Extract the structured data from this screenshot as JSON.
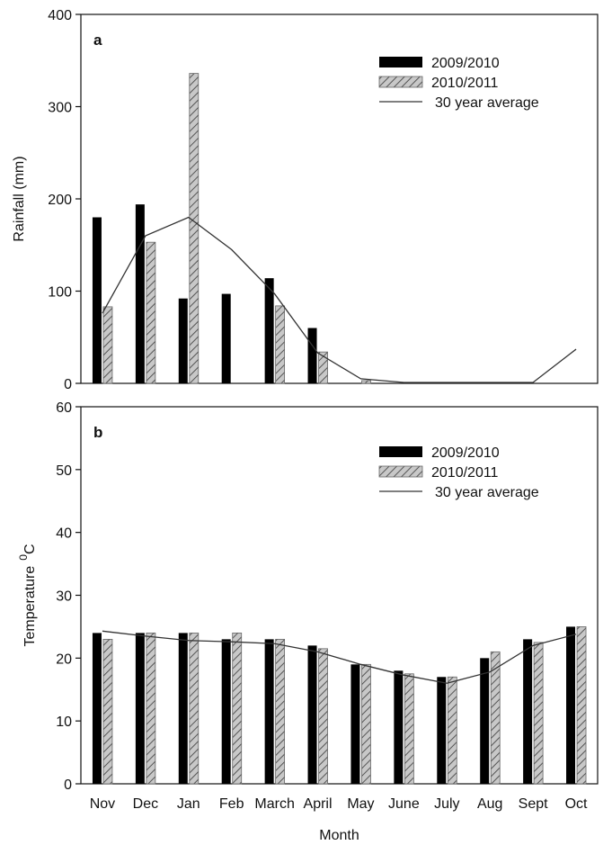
{
  "chart_data": [
    {
      "type": "bar",
      "panel_label": "a",
      "title": "",
      "xlabel": "",
      "ylabel": "Rainfall (mm)",
      "ylim": [
        0,
        400
      ],
      "yticks": [
        0,
        100,
        200,
        300,
        400
      ],
      "grid": false,
      "legend_position": "top-right",
      "categories": [
        "Nov",
        "Dec",
        "Jan",
        "Feb",
        "March",
        "April",
        "May",
        "June",
        "July",
        "Aug",
        "Sept",
        "Oct"
      ],
      "series": [
        {
          "name": "2009/2010",
          "kind": "bar",
          "style": "solid-black",
          "values": [
            180,
            194,
            92,
            97,
            114,
            60,
            0,
            0,
            0,
            0,
            0,
            0
          ]
        },
        {
          "name": "2010/2011",
          "kind": "bar",
          "style": "hatched-gray",
          "values": [
            83,
            153,
            336,
            0,
            84,
            34,
            3,
            0,
            0,
            0,
            0,
            0
          ]
        },
        {
          "name": "30 year average",
          "kind": "line",
          "style": "thin-black",
          "values": [
            76,
            160,
            180,
            145,
            97,
            33,
            5,
            1,
            1,
            1,
            1,
            37
          ]
        }
      ]
    },
    {
      "type": "bar",
      "panel_label": "b",
      "title": "",
      "xlabel": "Month",
      "ylabel": "Temperature",
      "ylabel_sup": "0",
      "ylabel_sub": "C",
      "ylim": [
        0,
        60
      ],
      "yticks": [
        0,
        10,
        20,
        30,
        40,
        50,
        60
      ],
      "grid": false,
      "legend_position": "top-right",
      "categories": [
        "Nov",
        "Dec",
        "Jan",
        "Feb",
        "March",
        "April",
        "May",
        "June",
        "July",
        "Aug",
        "Sept",
        "Oct"
      ],
      "series": [
        {
          "name": "2009/2010",
          "kind": "bar",
          "style": "solid-black",
          "values": [
            24,
            24,
            24,
            23,
            23,
            22,
            19,
            18,
            17,
            20,
            23,
            25
          ]
        },
        {
          "name": "2010/2011",
          "kind": "bar",
          "style": "hatched-gray",
          "values": [
            23,
            24,
            24,
            24,
            23,
            21.5,
            19,
            17.5,
            17,
            21,
            22.5,
            25
          ]
        },
        {
          "name": "30 year average",
          "kind": "line",
          "style": "thin-black",
          "values": [
            24.3,
            23.5,
            22.8,
            22.6,
            22.3,
            21,
            19,
            17.3,
            16,
            17.8,
            22,
            23.8
          ]
        }
      ]
    }
  ],
  "colors": {
    "bar_solid": "#000000",
    "hatch_fill": "#c8c8c8",
    "hatch_line": "#555555",
    "line": "#333333"
  }
}
